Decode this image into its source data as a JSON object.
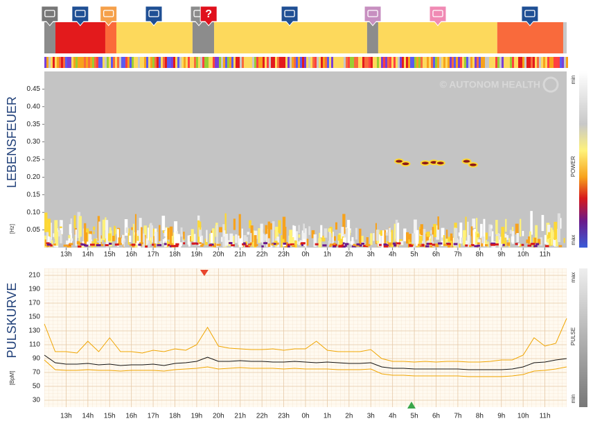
{
  "chart_data": [
    {
      "type": "timeline",
      "xlim": [
        12,
        36
      ],
      "segments": [
        {
          "start": 12,
          "end": 12.51,
          "color": "#8c8c8c"
        },
        {
          "start": 12.51,
          "end": 14.8,
          "color": "#e31a1c"
        },
        {
          "start": 14.8,
          "end": 15.31,
          "color": "#fb6a3a"
        },
        {
          "start": 15.31,
          "end": 18.81,
          "color": "#fdd95c"
        },
        {
          "start": 18.81,
          "end": 19.8,
          "color": "#8c8c8c"
        },
        {
          "start": 19.8,
          "end": 26.83,
          "color": "#fdd95c"
        },
        {
          "start": 26.83,
          "end": 27.34,
          "color": "#8c8c8c"
        },
        {
          "start": 27.34,
          "end": 32.81,
          "color": "#fdd95c"
        },
        {
          "start": 32.81,
          "end": 35.84,
          "color": "#f96a3c"
        },
        {
          "start": 35.84,
          "end": 36,
          "color": "#c8c8c8"
        }
      ],
      "events": [
        {
          "x": 12.25,
          "color": "#777777"
        },
        {
          "x": 13.65,
          "color": "#1f4f94"
        },
        {
          "x": 14.95,
          "color": "#f5a04a"
        },
        {
          "x": 17.03,
          "color": "#1f4f94"
        },
        {
          "x": 19.1,
          "color": "#8c8c8c"
        },
        {
          "x": 19.55,
          "color": "#e0101c",
          "label": "?"
        },
        {
          "x": 23.27,
          "color": "#1f4f94"
        },
        {
          "x": 27.09,
          "color": "#c78fc0"
        },
        {
          "x": 30.08,
          "color": "#f08ab4"
        },
        {
          "x": 34.31,
          "color": "#1f4f94"
        }
      ]
    },
    {
      "type": "spectrogram",
      "y_label": "LEBENSFEUER",
      "unit": "[Hz]",
      "watermark": "© AUTONOM HEALTH",
      "xlim": [
        12,
        36
      ],
      "xticks": [
        {
          "value": 13,
          "label": "13h"
        },
        {
          "value": 14,
          "label": "14h"
        },
        {
          "value": 15,
          "label": "15h"
        },
        {
          "value": 16,
          "label": "16h"
        },
        {
          "value": 17,
          "label": "17h"
        },
        {
          "value": 18,
          "label": "18h"
        },
        {
          "value": 19,
          "label": "19h"
        },
        {
          "value": 20,
          "label": "20h"
        },
        {
          "value": 21,
          "label": "21h"
        },
        {
          "value": 22,
          "label": "22h"
        },
        {
          "value": 23,
          "label": "23h"
        },
        {
          "value": 24,
          "label": "0h"
        },
        {
          "value": 25,
          "label": "1h"
        },
        {
          "value": 26,
          "label": "2h"
        },
        {
          "value": 27,
          "label": "3h"
        },
        {
          "value": 28,
          "label": "4h"
        },
        {
          "value": 29,
          "label": "5h"
        },
        {
          "value": 30,
          "label": "6h"
        },
        {
          "value": 31,
          "label": "7h"
        },
        {
          "value": 32,
          "label": "8h"
        },
        {
          "value": 33,
          "label": "9h"
        },
        {
          "value": 34,
          "label": "10h"
        },
        {
          "value": 35,
          "label": "11h"
        }
      ],
      "ylim": [
        0,
        0.5
      ],
      "yticks": [
        {
          "value": 0.05,
          "label": "0.05"
        },
        {
          "value": 0.1,
          "label": "0.10"
        },
        {
          "value": 0.15,
          "label": "0.15"
        },
        {
          "value": 0.2,
          "label": "0.20"
        },
        {
          "value": 0.25,
          "label": "0.25"
        },
        {
          "value": 0.3,
          "label": "0.30"
        },
        {
          "value": 0.35,
          "label": "0.35"
        },
        {
          "value": 0.4,
          "label": "0.40"
        },
        {
          "value": 0.45,
          "label": "0.45"
        }
      ],
      "peaks": {
        "x": [
          28.3,
          28.6,
          29.5,
          29.9,
          30.2,
          31.4,
          31.7
        ],
        "y": [
          0.245,
          0.238,
          0.24,
          0.242,
          0.24,
          0.245,
          0.235
        ]
      },
      "color_scale": {
        "title": "POWER",
        "min_label": "min",
        "max_label": "max"
      }
    },
    {
      "type": "line",
      "y_label": "PULSKURVE",
      "unit": "[BpM]",
      "xlim": [
        12,
        36
      ],
      "xticks": [
        {
          "value": 13,
          "label": "13h"
        },
        {
          "value": 14,
          "label": "14h"
        },
        {
          "value": 15,
          "label": "15h"
        },
        {
          "value": 16,
          "label": "16h"
        },
        {
          "value": 17,
          "label": "17h"
        },
        {
          "value": 18,
          "label": "18h"
        },
        {
          "value": 19,
          "label": "19h"
        },
        {
          "value": 20,
          "label": "20h"
        },
        {
          "value": 21,
          "label": "21h"
        },
        {
          "value": 22,
          "label": "22h"
        },
        {
          "value": 23,
          "label": "23h"
        },
        {
          "value": 24,
          "label": "0h"
        },
        {
          "value": 25,
          "label": "1h"
        },
        {
          "value": 26,
          "label": "2h"
        },
        {
          "value": 27,
          "label": "3h"
        },
        {
          "value": 28,
          "label": "4h"
        },
        {
          "value": 29,
          "label": "5h"
        },
        {
          "value": 30,
          "label": "6h"
        },
        {
          "value": 31,
          "label": "7h"
        },
        {
          "value": 32,
          "label": "8h"
        },
        {
          "value": 33,
          "label": "9h"
        },
        {
          "value": 34,
          "label": "10h"
        },
        {
          "value": 35,
          "label": "11h"
        }
      ],
      "ylim": [
        20,
        220
      ],
      "yticks": [
        30,
        50,
        70,
        90,
        110,
        130,
        150,
        170,
        190,
        210
      ],
      "x": [
        12,
        12.5,
        13,
        13.5,
        14,
        14.5,
        15,
        15.5,
        16,
        16.5,
        17,
        17.5,
        18,
        18.5,
        19,
        19.5,
        20,
        20.5,
        21,
        21.5,
        22,
        22.5,
        23,
        23.5,
        24,
        24.5,
        25,
        25.5,
        26,
        26.5,
        27,
        27.5,
        28,
        28.5,
        29,
        29.5,
        30,
        30.5,
        31,
        31.5,
        32,
        32.5,
        33,
        33.5,
        34,
        34.5,
        35,
        35.5,
        36
      ],
      "series": [
        {
          "color": "#f0a500",
          "values": [
            140,
            100,
            100,
            98,
            115,
            100,
            120,
            100,
            100,
            98,
            102,
            100,
            104,
            102,
            110,
            135,
            108,
            105,
            104,
            103,
            103,
            104,
            102,
            104,
            104,
            115,
            102,
            100,
            100,
            100,
            103,
            90,
            86,
            86,
            85,
            86,
            85,
            86,
            86,
            85,
            85,
            86,
            88,
            88,
            95,
            120,
            108,
            112,
            148
          ]
        },
        {
          "color": "#f0a500",
          "values": [
            88,
            74,
            73,
            73,
            74,
            73,
            73,
            72,
            73,
            73,
            73,
            72,
            74,
            75,
            76,
            78,
            75,
            76,
            77,
            76,
            76,
            76,
            75,
            76,
            75,
            75,
            75,
            74,
            74,
            74,
            75,
            68,
            66,
            66,
            65,
            65,
            65,
            65,
            65,
            64,
            64,
            64,
            64,
            65,
            67,
            72,
            73,
            75,
            78
          ]
        },
        {
          "color": "#111111",
          "values": [
            95,
            84,
            82,
            82,
            83,
            81,
            82,
            80,
            81,
            81,
            82,
            80,
            83,
            84,
            86,
            92,
            86,
            86,
            87,
            86,
            86,
            85,
            85,
            86,
            85,
            84,
            85,
            84,
            83,
            83,
            84,
            78,
            76,
            76,
            75,
            75,
            75,
            75,
            75,
            74,
            74,
            74,
            74,
            75,
            78,
            84,
            85,
            88,
            90
          ]
        }
      ],
      "max_at": 19.35,
      "max_color": "#e8452c",
      "min_at": 28.87,
      "min_color": "#3aa64a",
      "color_scale": {
        "title": "PULSE",
        "max_label": "max",
        "min_label": "min"
      }
    }
  ]
}
